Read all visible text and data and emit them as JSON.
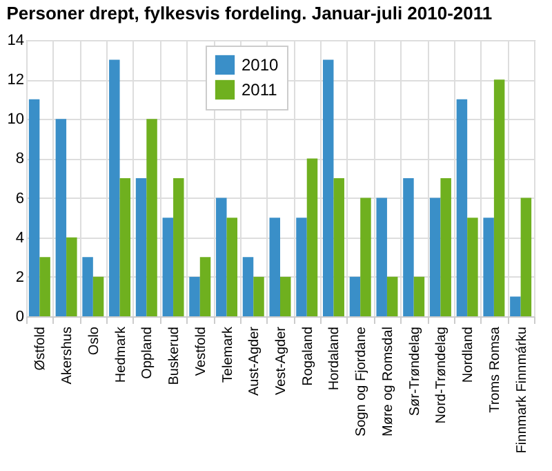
{
  "chart_data": {
    "type": "bar",
    "title": "Personer drept, fylkesvis fordeling. Januar-juli 2010-2011",
    "categories": [
      "Østfold",
      "Akershus",
      "Oslo",
      "Hedmark",
      "Oppland",
      "Buskerud",
      "Vestfold",
      "Telemark",
      "Aust-Agder",
      "Vest-Agder",
      "Rogaland",
      "Hordaland",
      "Sogn og Fjordane",
      "Møre og Romsdal",
      "Sør-Trøndelag",
      "Nord-Trøndelag",
      "Nordland",
      "Troms Romsa",
      "Finnmark Finnmárku"
    ],
    "series": [
      {
        "name": "2010",
        "color": "#3a8fc8",
        "values": [
          11,
          10,
          3,
          13,
          7,
          5,
          2,
          6,
          3,
          5,
          5,
          13,
          2,
          6,
          7,
          6,
          11,
          5,
          1
        ]
      },
      {
        "name": "2011",
        "color": "#6fb01f",
        "values": [
          3,
          4,
          2,
          7,
          10,
          7,
          3,
          5,
          2,
          2,
          8,
          7,
          6,
          2,
          2,
          7,
          5,
          12,
          6
        ]
      }
    ],
    "ylim": [
      0,
      14
    ],
    "yticks": [
      0,
      2,
      4,
      6,
      8,
      10,
      12,
      14
    ],
    "grid": true,
    "legend": "top left"
  }
}
